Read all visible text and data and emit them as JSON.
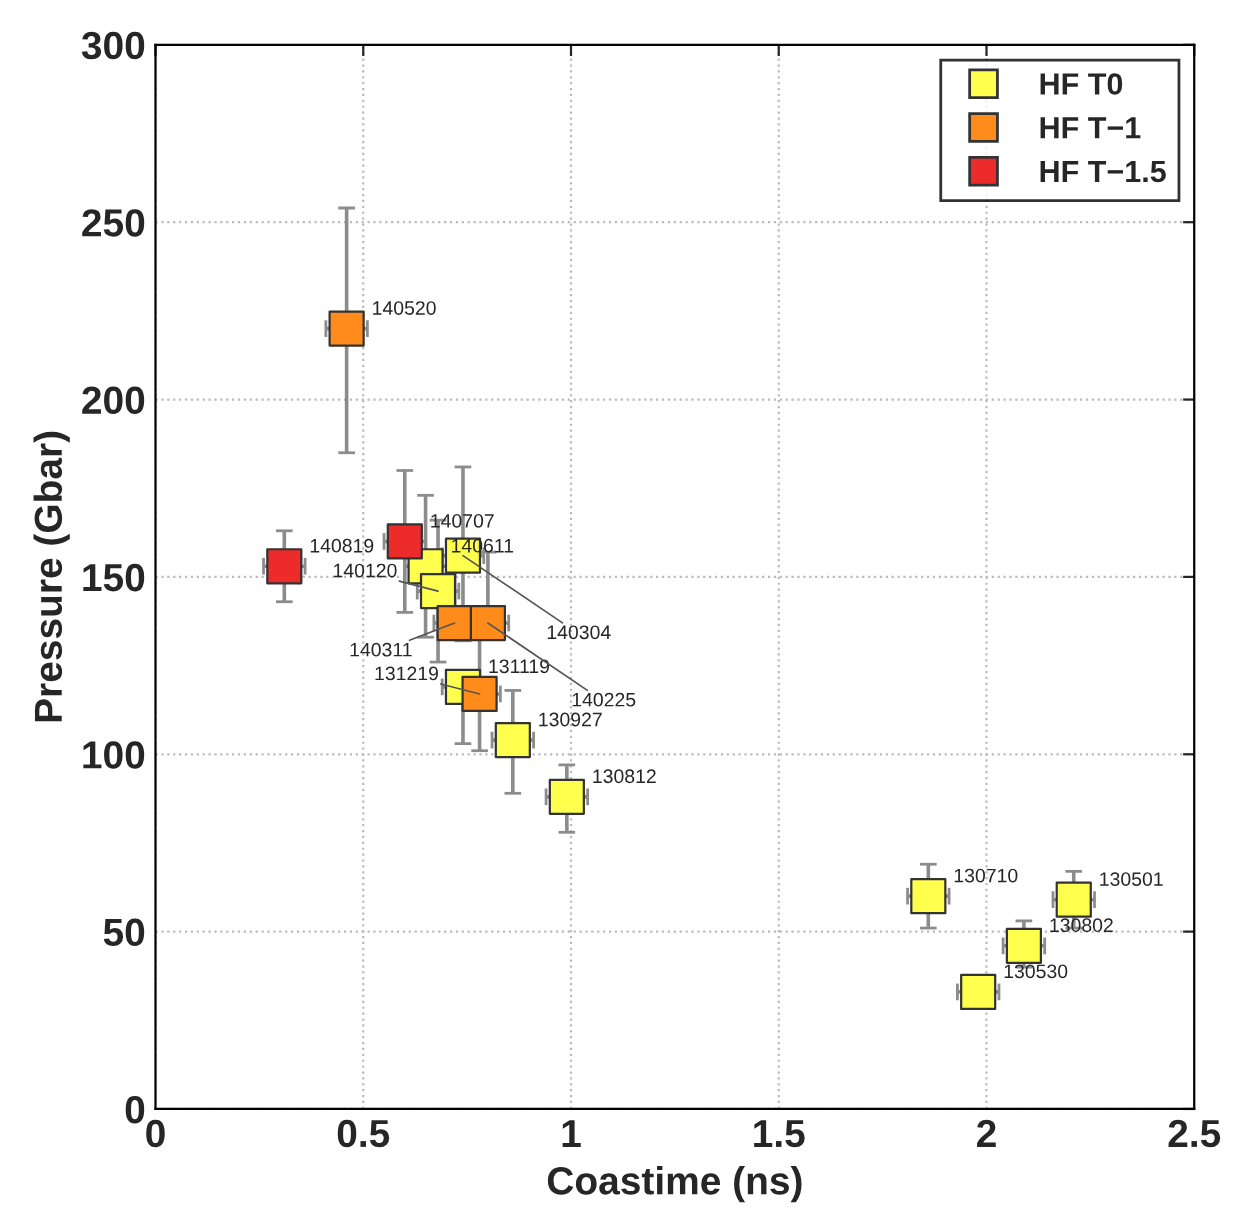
{
  "chart_data": {
    "type": "scatter",
    "xlabel": "Coastime (ns)",
    "ylabel": "Pressure (Gbar)",
    "xlim": [
      0,
      2.5
    ],
    "xticks": [
      0,
      0.5,
      1,
      1.5,
      2,
      2.5
    ],
    "ylim": [
      0,
      300
    ],
    "yticks": [
      0,
      50,
      100,
      150,
      200,
      250,
      300
    ],
    "grid": true,
    "legend": "top right",
    "marker": "square",
    "series": [
      {
        "name": "HF T0",
        "color": "#ffff4d",
        "x": [
          0.65,
          0.74,
          0.68,
          0.74,
          0.86,
          0.99,
          1.86,
          2.21,
          2.09,
          1.98
        ],
        "values": [
          153,
          156,
          146,
          119,
          104,
          88,
          60,
          59,
          46,
          33
        ],
        "errors": [
          [
            133,
            173
          ],
          [
            132,
            181
          ],
          [
            126,
            166
          ],
          [
            103,
            119
          ],
          [
            89,
            118
          ],
          [
            78,
            97
          ],
          [
            51,
            69
          ],
          [
            51,
            67
          ],
          [
            40,
            53
          ],
          null
        ],
        "xerrors": [
          0.05,
          0.05,
          0.05,
          0.05,
          0.05,
          0.05,
          0.05,
          0.05,
          0.05,
          0.05
        ]
      },
      {
        "name": "HF T−1",
        "color": "#ff8c1a",
        "x": [
          0.46,
          0.72,
          0.8,
          0.78
        ],
        "values": [
          220,
          137,
          137,
          117
        ],
        "errors": [
          [
            185,
            254
          ],
          [
            137,
            157
          ],
          [
            137,
            157
          ],
          [
            101,
            133
          ]
        ],
        "xerrors": [
          0.05,
          0.05,
          0.05,
          0.05
        ]
      },
      {
        "name": "HF T−1.5",
        "color": "#ee2b2b",
        "x": [
          0.31,
          0.6
        ],
        "values": [
          153,
          160
        ],
        "errors": [
          [
            143,
            163
          ],
          [
            140,
            180
          ]
        ],
        "xerrors": [
          0.05,
          0.05
        ]
      }
    ],
    "annotations": [
      {
        "text": "140611",
        "x": 0.65,
        "y": 153
      },
      {
        "text": "140304",
        "x": 0.74,
        "y": 156
      },
      {
        "text": "140120",
        "x": 0.68,
        "y": 146
      },
      {
        "text": "131119",
        "x": 0.74,
        "y": 119
      },
      {
        "text": "130927",
        "x": 0.86,
        "y": 104
      },
      {
        "text": "130812",
        "x": 0.99,
        "y": 88
      },
      {
        "text": "130710",
        "x": 1.86,
        "y": 60
      },
      {
        "text": "130501",
        "x": 2.21,
        "y": 59
      },
      {
        "text": "130802",
        "x": 2.09,
        "y": 46
      },
      {
        "text": "130530",
        "x": 1.98,
        "y": 33
      },
      {
        "text": "140520",
        "x": 0.46,
        "y": 220
      },
      {
        "text": "140311",
        "x": 0.72,
        "y": 137
      },
      {
        "text": "140225",
        "x": 0.8,
        "y": 137
      },
      {
        "text": "131219",
        "x": 0.78,
        "y": 117
      },
      {
        "text": "140819",
        "x": 0.31,
        "y": 153
      },
      {
        "text": "140707",
        "x": 0.6,
        "y": 160
      }
    ]
  }
}
